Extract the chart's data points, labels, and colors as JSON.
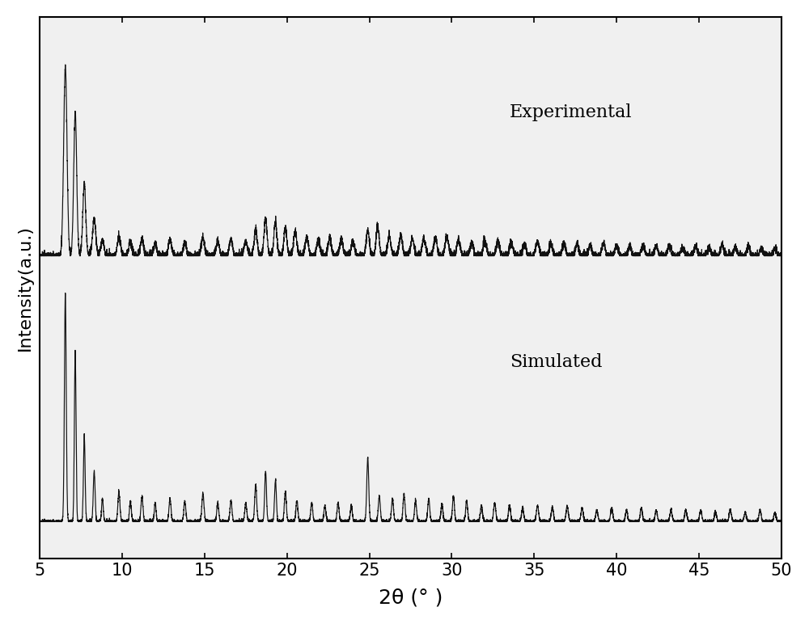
{
  "title": "",
  "xlabel": "2θ (° )",
  "ylabel": "Intensity(a.u.)",
  "xlim": [
    5,
    50
  ],
  "x_ticks": [
    5,
    10,
    15,
    20,
    25,
    30,
    35,
    40,
    45,
    50
  ],
  "label_experimental": "Experimental",
  "label_simulated": "Simulated",
  "line_color": "#111111",
  "bg_color": "#f0f0f0",
  "figsize": [
    10.0,
    7.72
  ],
  "dpi": 100,
  "xlabel_fontsize": 18,
  "ylabel_fontsize": 16,
  "tick_fontsize": 15,
  "label_fontsize": 16,
  "linewidth": 0.85
}
